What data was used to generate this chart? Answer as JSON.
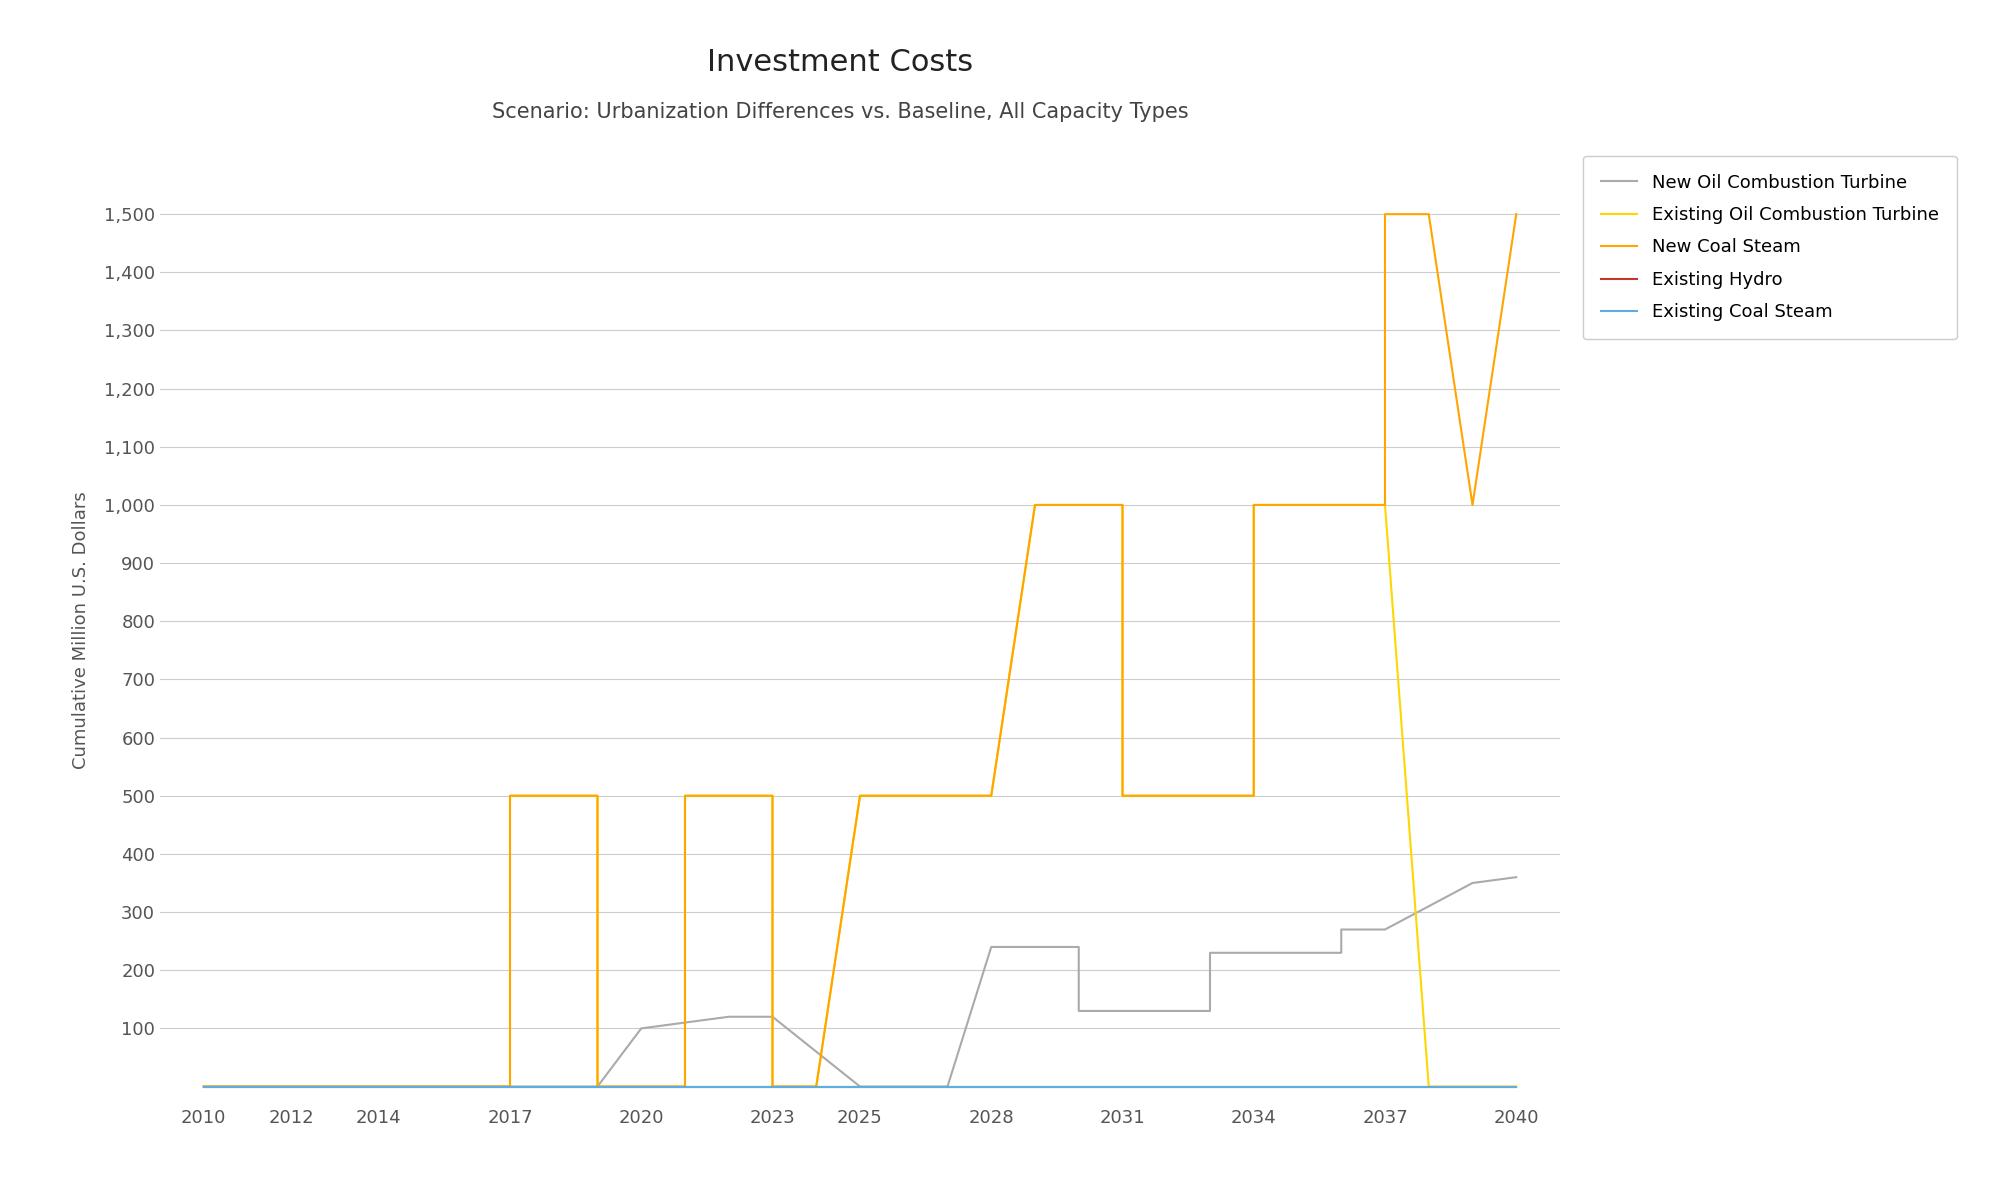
{
  "title": "Investment Costs",
  "subtitle": "Scenario: Urbanization Differences vs. Baseline, All Capacity Types",
  "ylabel": "Cumulative Million U.S. Dollars",
  "xlabel": "",
  "xlim": [
    2009,
    2041
  ],
  "ylim": [
    -30,
    1600
  ],
  "yticks": [
    100,
    200,
    300,
    400,
    500,
    600,
    700,
    800,
    900,
    1000,
    1100,
    1200,
    1300,
    1400,
    1500
  ],
  "xticks": [
    2010,
    2012,
    2014,
    2017,
    2020,
    2023,
    2025,
    2028,
    2031,
    2034,
    2037,
    2040
  ],
  "series": [
    {
      "label": "New Oil Combustion Turbine",
      "color": "#aaaaaa",
      "x": [
        2010,
        2014,
        2017,
        2018,
        2019,
        2019,
        2020,
        2020,
        2022,
        2022,
        2023,
        2023,
        2025,
        2025,
        2026,
        2027,
        2028,
        2028,
        2030,
        2030,
        2031,
        2031,
        2033,
        2033,
        2034,
        2034,
        2036,
        2036,
        2037,
        2037,
        2039,
        2040
      ],
      "y": [
        0,
        0,
        0,
        0,
        0,
        0,
        100,
        100,
        120,
        120,
        120,
        120,
        0,
        0,
        0,
        0,
        240,
        240,
        240,
        130,
        130,
        130,
        130,
        230,
        230,
        230,
        230,
        270,
        270,
        270,
        350,
        360
      ]
    },
    {
      "label": "Existing Oil Combustion Turbine",
      "color": "#FFD700",
      "x": [
        2010,
        2016,
        2017,
        2017,
        2018,
        2019,
        2019,
        2020,
        2021,
        2021,
        2022,
        2023,
        2023,
        2024,
        2025,
        2027,
        2028,
        2029,
        2030,
        2031,
        2031,
        2034,
        2034,
        2037,
        2037,
        2038,
        2039,
        2040
      ],
      "y": [
        0,
        0,
        0,
        500,
        500,
        500,
        0,
        0,
        0,
        500,
        500,
        500,
        0,
        0,
        500,
        500,
        500,
        1000,
        1000,
        1000,
        500,
        500,
        1000,
        1000,
        1000,
        0,
        0,
        0
      ]
    },
    {
      "label": "New Coal Steam",
      "color": "#FFA500",
      "x": [
        2010,
        2016,
        2017,
        2017,
        2018,
        2019,
        2019,
        2020,
        2021,
        2021,
        2022,
        2023,
        2023,
        2024,
        2025,
        2027,
        2028,
        2029,
        2030,
        2031,
        2031,
        2034,
        2034,
        2037,
        2037,
        2038,
        2039,
        2040
      ],
      "y": [
        0,
        0,
        0,
        500,
        500,
        500,
        0,
        0,
        0,
        500,
        500,
        500,
        0,
        0,
        500,
        500,
        500,
        1000,
        1000,
        1000,
        500,
        500,
        1000,
        1000,
        1500,
        1500,
        1000,
        1500
      ]
    },
    {
      "label": "Existing Hydro",
      "color": "#c0392b",
      "x": [
        2010,
        2040
      ],
      "y": [
        0,
        0
      ]
    },
    {
      "label": "Existing Coal Steam",
      "color": "#5dade2",
      "x": [
        2010,
        2040
      ],
      "y": [
        0,
        0
      ]
    }
  ],
  "background_color": "#ffffff",
  "grid_color": "#cccccc",
  "title_fontsize": 22,
  "subtitle_fontsize": 15,
  "label_fontsize": 13,
  "tick_fontsize": 13,
  "legend_fontsize": 13
}
